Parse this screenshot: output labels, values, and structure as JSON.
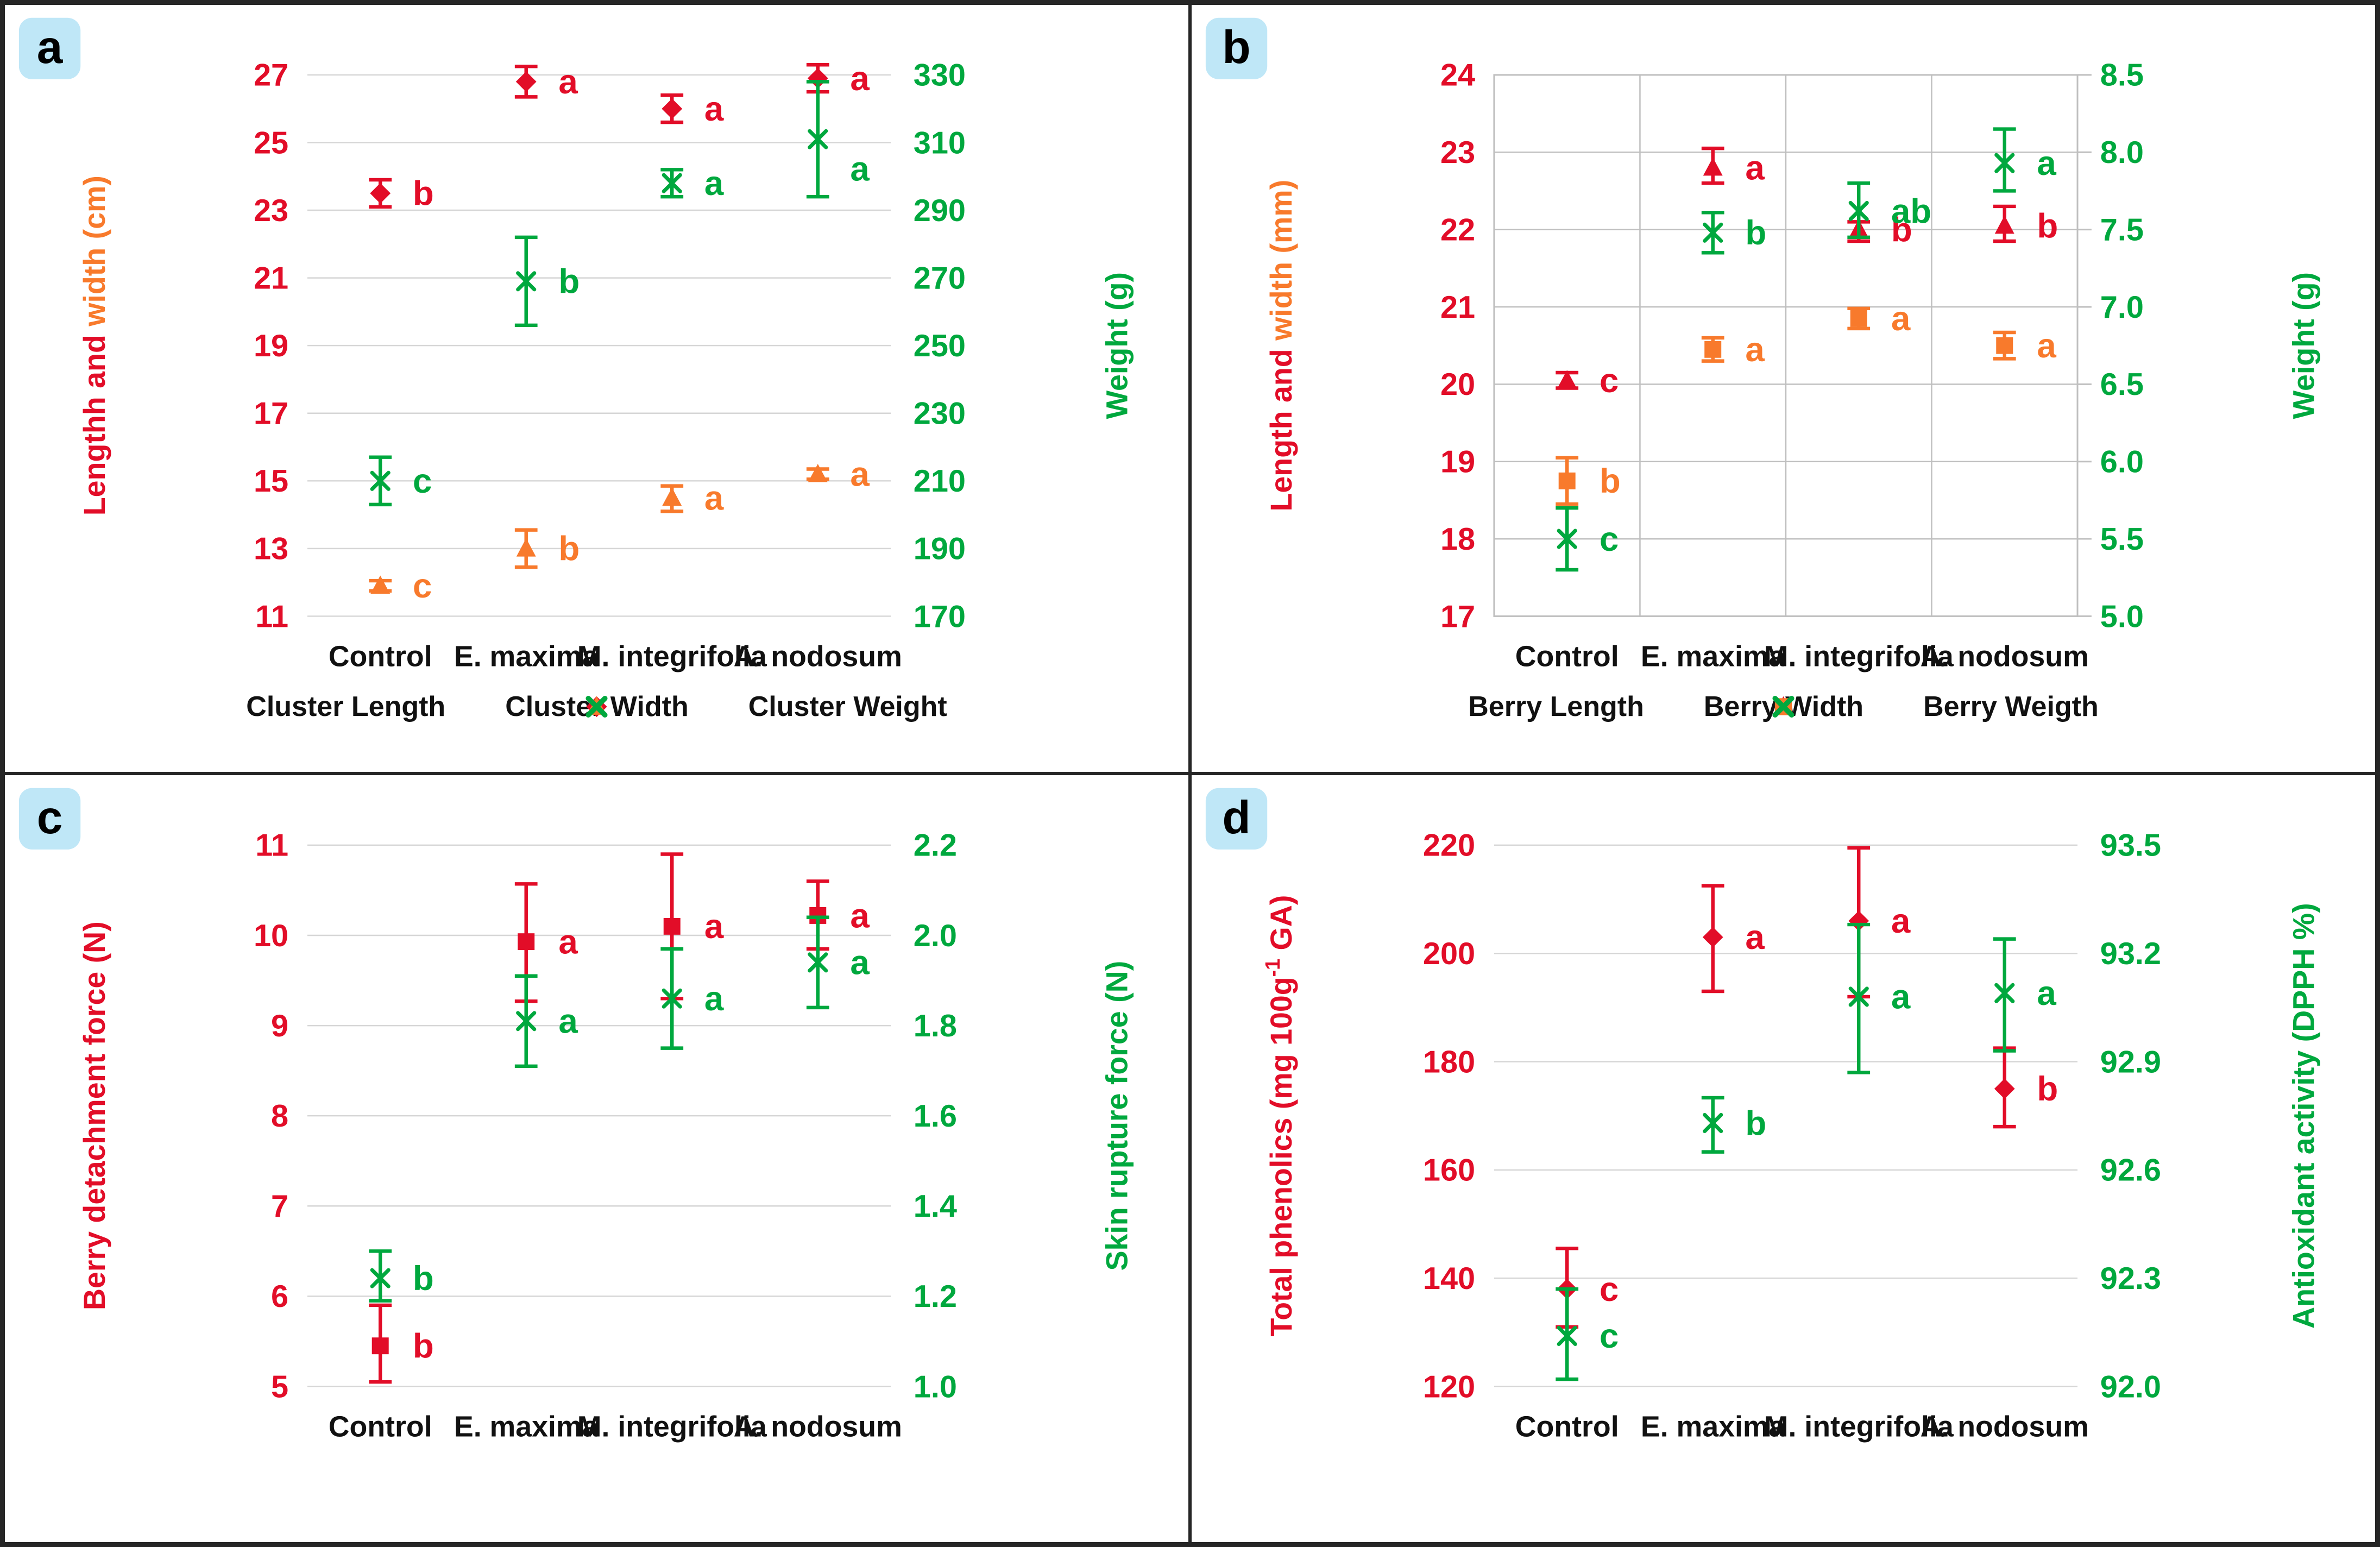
{
  "palette": {
    "red": "#e20d28",
    "orange": "#f87a2c",
    "green": "#00a83e",
    "grid": "#d6d6d6",
    "box": "#bfbfbf",
    "text": "#111111",
    "badge_bg": "#bfe7f7",
    "badge_text": "#000000",
    "figure_border": "#262626"
  },
  "chart_data": [
    {
      "panel": "a",
      "type": "scatter",
      "categories": [
        "Control",
        "E. maxima",
        "M. integrifolia",
        "A. nodosum"
      ],
      "grid": "lines",
      "show_legend": true,
      "left_axis": {
        "label_parts": [
          {
            "t": "Lengthh and ",
            "c": "red"
          },
          {
            "t": "width (cm)",
            "c": "orange"
          }
        ],
        "min": 11,
        "max": 27,
        "tick_values": [
          27,
          25,
          23,
          21,
          19,
          17,
          15,
          13,
          11
        ],
        "tick_labels": [
          "27",
          "25",
          "23",
          "21",
          "19",
          "17",
          "15",
          "13",
          "11"
        ],
        "color": "red"
      },
      "right_axis": {
        "label_parts": [
          {
            "t": "Weight (g)",
            "c": "green"
          }
        ],
        "min": 170,
        "max": 330,
        "tick_values": [
          330,
          310,
          290,
          270,
          250,
          230,
          210,
          190,
          170
        ],
        "tick_labels": [
          "330",
          "310",
          "290",
          "270",
          "250",
          "230",
          "210",
          "190",
          "170"
        ],
        "color": "green"
      },
      "series": [
        {
          "name": "Cluster Length",
          "marker": "diamond",
          "color": "red",
          "axis": "left",
          "values": [
            23.5,
            26.8,
            26.0,
            26.9
          ],
          "err_lo": [
            23.1,
            26.35,
            25.6,
            26.5
          ],
          "err_hi": [
            23.9,
            27.25,
            26.4,
            27.3
          ],
          "letters": [
            "b",
            "a",
            "a",
            "a"
          ]
        },
        {
          "name": "Cluster Width",
          "marker": "triangle",
          "color": "orange",
          "axis": "left",
          "values": [
            11.9,
            13.0,
            14.5,
            15.2
          ],
          "err_lo": [
            11.75,
            12.45,
            14.1,
            15.05
          ],
          "err_hi": [
            12.05,
            13.55,
            14.85,
            15.35
          ],
          "letters": [
            "c",
            "b",
            "a",
            "a"
          ]
        },
        {
          "name": "Cluster Weight",
          "marker": "x",
          "color": "green",
          "axis": "right",
          "values": [
            210,
            269,
            298,
            311
          ],
          "err_lo": [
            203,
            256,
            294,
            294
          ],
          "err_hi": [
            217,
            282,
            302,
            328
          ],
          "letters": [
            "c",
            "b",
            "a",
            "a"
          ],
          "letter_dy": [
            0,
            0,
            0,
            55
          ]
        }
      ]
    },
    {
      "panel": "b",
      "type": "scatter",
      "categories": [
        "Control",
        "E. maxima",
        "M. integrifolia",
        "A. nodosum"
      ],
      "grid": "box",
      "show_legend": true,
      "left_axis": {
        "label_parts": [
          {
            "t": "Length and ",
            "c": "red"
          },
          {
            "t": "width (mm)",
            "c": "orange"
          }
        ],
        "min": 17,
        "max": 24,
        "tick_values": [
          24,
          23,
          22,
          21,
          20,
          19,
          18,
          17
        ],
        "tick_labels": [
          "24",
          "23",
          "22",
          "21",
          "20",
          "19",
          "18",
          "17"
        ],
        "color": "red"
      },
      "right_axis": {
        "label_parts": [
          {
            "t": "Weight (g)",
            "c": "green"
          }
        ],
        "min": 5.0,
        "max": 8.5,
        "tick_values": [
          8.5,
          8.0,
          7.5,
          7.0,
          6.5,
          6.0,
          5.5,
          5.0
        ],
        "tick_labels": [
          "8.5",
          "8.0",
          "7.5",
          "7.0",
          "6.5",
          "6.0",
          "5.5",
          "5.0"
        ],
        "color": "green"
      },
      "series": [
        {
          "name": "Berry Length",
          "marker": "triangle",
          "color": "red",
          "axis": "left",
          "values": [
            20.05,
            22.8,
            22.0,
            22.05
          ],
          "err_lo": [
            19.95,
            22.6,
            21.85,
            21.85
          ],
          "err_hi": [
            20.15,
            23.05,
            22.1,
            22.3
          ],
          "letters": [
            "c",
            "a",
            "b",
            "b"
          ]
        },
        {
          "name": "Berry Width",
          "marker": "square",
          "color": "orange",
          "axis": "left",
          "values": [
            18.75,
            20.45,
            20.85,
            20.5
          ],
          "err_lo": [
            18.45,
            20.3,
            20.72,
            20.33
          ],
          "err_hi": [
            19.05,
            20.6,
            20.98,
            20.67
          ],
          "letters": [
            "b",
            "a",
            "a",
            "a"
          ]
        },
        {
          "name": "Berry Weigth",
          "marker": "x",
          "color": "green",
          "axis": "right",
          "values": [
            5.5,
            7.48,
            7.62,
            7.93
          ],
          "err_lo": [
            5.3,
            7.35,
            7.45,
            7.75
          ],
          "err_hi": [
            5.7,
            7.61,
            7.8,
            8.15
          ],
          "letters": [
            "c",
            "b",
            "ab",
            "a"
          ]
        }
      ]
    },
    {
      "panel": "c",
      "type": "scatter",
      "categories": [
        "Control",
        "E. maxima",
        "M. integrifolia",
        "A. nodosum"
      ],
      "grid": "lines",
      "show_legend": false,
      "left_axis": {
        "label_parts": [
          {
            "t": "Berry detachment force (N)",
            "c": "red"
          }
        ],
        "min": 5,
        "max": 11,
        "tick_values": [
          11,
          10,
          9,
          8,
          7,
          6,
          5
        ],
        "tick_labels": [
          "11",
          "10",
          "9",
          "8",
          "7",
          "6",
          "5"
        ],
        "color": "red"
      },
      "right_axis": {
        "label_parts": [
          {
            "t": "Skin rupture force (N)",
            "c": "green"
          }
        ],
        "min": 1.0,
        "max": 2.2,
        "tick_values": [
          2.2,
          2.0,
          1.8,
          1.6,
          1.4,
          1.2,
          1.0
        ],
        "tick_labels": [
          "2.2",
          "2.0",
          "1.8",
          "1.6",
          "1.4",
          "1.2",
          "1.0"
        ],
        "color": "green"
      },
      "series": [
        {
          "name": "Berry detachment force",
          "marker": "square",
          "color": "red",
          "axis": "left",
          "values": [
            5.45,
            9.93,
            10.1,
            10.22
          ],
          "err_lo": [
            5.05,
            9.27,
            9.3,
            9.85
          ],
          "err_hi": [
            5.9,
            10.57,
            10.9,
            10.6
          ],
          "letters": [
            "b",
            "a",
            "a",
            "a"
          ]
        },
        {
          "name": "Skin rupture force",
          "marker": "x",
          "color": "green",
          "axis": "right",
          "values": [
            1.24,
            1.81,
            1.86,
            1.94
          ],
          "err_lo": [
            1.19,
            1.71,
            1.75,
            1.84
          ],
          "err_hi": [
            1.3,
            1.91,
            1.97,
            2.04
          ],
          "letters": [
            "b",
            "a",
            "a",
            "a"
          ]
        }
      ]
    },
    {
      "panel": "d",
      "type": "scatter",
      "categories": [
        "Control",
        "E. maxima",
        "M. integrifolia",
        "A. nodosum"
      ],
      "grid": "lines",
      "show_legend": false,
      "left_axis": {
        "label_parts": [
          {
            "t": "Total phenolics (mg 100g",
            "c": "red"
          },
          {
            "t": "-1",
            "c": "red",
            "sup": true
          },
          {
            "t": " GA)",
            "c": "red"
          }
        ],
        "min": 120,
        "max": 220,
        "tick_values": [
          220,
          200,
          180,
          160,
          140,
          120
        ],
        "tick_labels": [
          "220",
          "200",
          "180",
          "160",
          "140",
          "120"
        ],
        "color": "red"
      },
      "right_axis": {
        "label_parts": [
          {
            "t": "Antioxidant activity (DPPH %)",
            "c": "green"
          }
        ],
        "min": 92.0,
        "max": 93.5,
        "tick_values": [
          93.5,
          93.2,
          92.9,
          92.6,
          92.3,
          92.0
        ],
        "tick_labels": [
          "93.5",
          "93.2",
          "92.9",
          "92.6",
          "92.3",
          "92.0"
        ],
        "color": "green"
      },
      "series": [
        {
          "name": "Total phenolics",
          "marker": "diamond",
          "color": "red",
          "axis": "left",
          "values": [
            138,
            203,
            206,
            175
          ],
          "err_lo": [
            131,
            193,
            192,
            168
          ],
          "err_hi": [
            145.5,
            212.5,
            219.5,
            182.5
          ],
          "letters": [
            "c",
            "a",
            "a",
            "b"
          ]
        },
        {
          "name": "Antioxidant activity",
          "marker": "x",
          "color": "green",
          "axis": "right",
          "values": [
            92.14,
            92.73,
            93.08,
            93.09
          ],
          "err_lo": [
            92.02,
            92.65,
            92.87,
            92.93
          ],
          "err_hi": [
            92.27,
            92.8,
            93.28,
            93.24
          ],
          "letters": [
            "c",
            "b",
            "a",
            "a"
          ]
        }
      ]
    }
  ]
}
